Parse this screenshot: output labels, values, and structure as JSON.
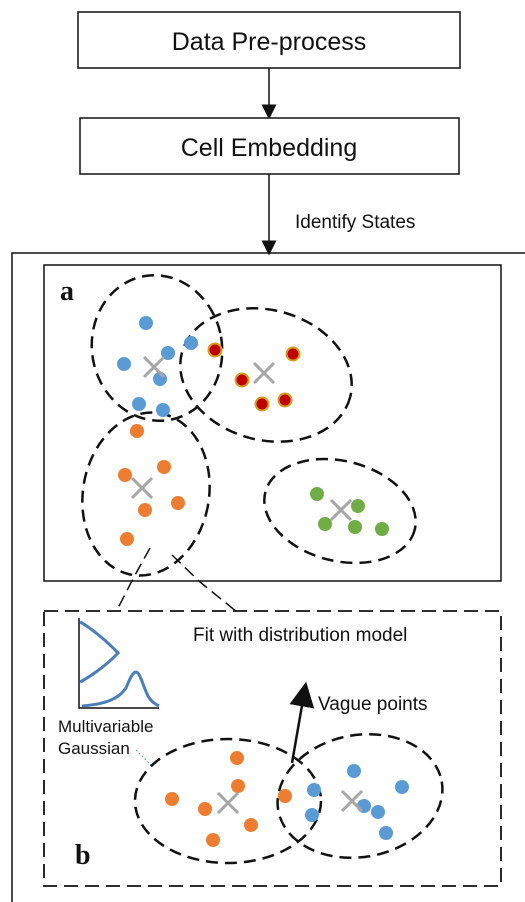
{
  "flow": {
    "step1": "Data Pre-process",
    "step2": "Cell Embedding",
    "arrow_label": "Identify States"
  },
  "panel_a": {
    "letter": "a"
  },
  "panel_b": {
    "letter": "b",
    "fit_label": "Fit with distribution model",
    "gaussian_label_line1": "Multivariable",
    "gaussian_label_line2": "Gaussian",
    "vague_label": "Vague points"
  },
  "colors": {
    "blue": "#5b9bd5",
    "orange": "#ed7d31",
    "red_fill": "#c00000",
    "red_stroke": "#d4a017",
    "green": "#70ad47",
    "centroid": "#a6a6a6",
    "curve": "#4a7ebb"
  }
}
